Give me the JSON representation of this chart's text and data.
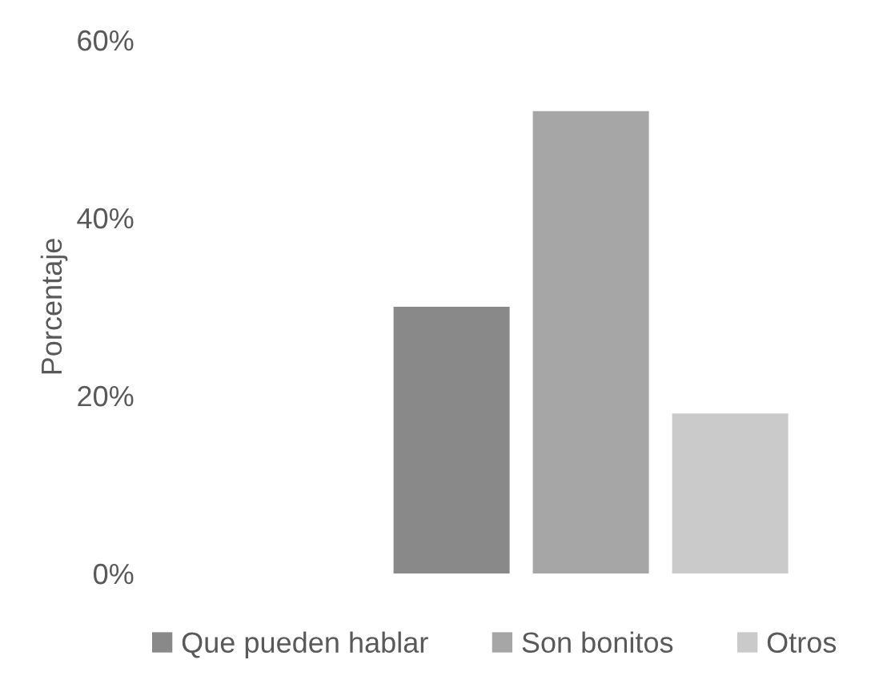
{
  "chart_data": {
    "type": "bar",
    "ylabel": "Porcentaje",
    "categories": [
      null
    ],
    "series": [
      {
        "name": "Que pueden hablar",
        "color": "#898989",
        "values": [
          30
        ]
      },
      {
        "name": "Son bonitos",
        "color": "#a6a6a6",
        "values": [
          52
        ]
      },
      {
        "name": "Otros",
        "color": "#cacaca",
        "values": [
          18
        ]
      }
    ],
    "ylim": [
      0,
      60
    ],
    "yticks": [
      {
        "value": 0,
        "label": "0%"
      },
      {
        "value": 20,
        "label": "20%"
      },
      {
        "value": 40,
        "label": "40%"
      },
      {
        "value": 60,
        "label": "60%"
      }
    ],
    "tick_labels": "y",
    "grid": false,
    "legend": "bottom"
  }
}
